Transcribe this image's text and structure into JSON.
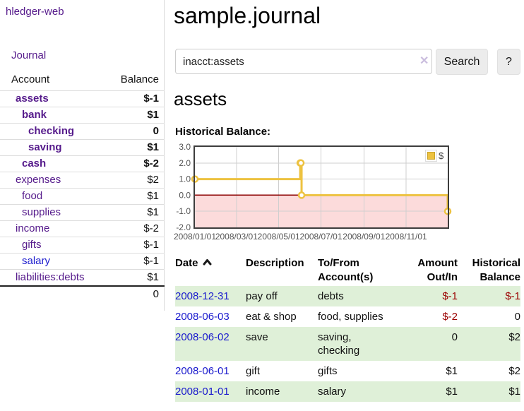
{
  "brand": "hledger-web",
  "nav": {
    "journal_label": "Journal"
  },
  "sidebar": {
    "header": {
      "account": "Account",
      "balance": "Balance"
    },
    "accounts": [
      {
        "name": "assets",
        "indent": 0,
        "balance": "$-1",
        "bold": true,
        "neg": "strong",
        "link_state": "visited"
      },
      {
        "name": "bank",
        "indent": 1,
        "balance": "$1",
        "bold": true,
        "neg": "none",
        "link_state": "visited"
      },
      {
        "name": "checking",
        "indent": 2,
        "balance": "0",
        "bold": true,
        "neg": "none",
        "link_state": "visited"
      },
      {
        "name": "saving",
        "indent": 2,
        "balance": "$1",
        "bold": true,
        "neg": "none",
        "link_state": "visited"
      },
      {
        "name": "cash",
        "indent": 1,
        "balance": "$-2",
        "bold": true,
        "neg": "strong",
        "link_state": "visited"
      },
      {
        "name": "expenses",
        "indent": 0,
        "balance": "$2",
        "bold": false,
        "neg": "none",
        "link_state": "visited"
      },
      {
        "name": "food",
        "indent": 1,
        "balance": "$1",
        "bold": false,
        "neg": "none",
        "link_state": "visited"
      },
      {
        "name": "supplies",
        "indent": 1,
        "balance": "$1",
        "bold": false,
        "neg": "none",
        "link_state": "visited"
      },
      {
        "name": "income",
        "indent": 0,
        "balance": "$-2",
        "bold": false,
        "neg": "soft",
        "link_state": "visited"
      },
      {
        "name": "gifts",
        "indent": 1,
        "balance": "$-1",
        "bold": false,
        "neg": "soft",
        "link_state": "visited"
      },
      {
        "name": "salary",
        "indent": 1,
        "balance": "$-1",
        "bold": false,
        "neg": "soft",
        "link_state": "unvisited"
      },
      {
        "name": "liabilities:debts",
        "indent": 0,
        "balance": "$1",
        "bold": false,
        "neg": "none",
        "link_state": "visited"
      }
    ],
    "total": "0"
  },
  "header": {
    "title": "sample.journal"
  },
  "search": {
    "value": "inacct:assets",
    "clear_icon": "✕",
    "button_label": "Search",
    "help_label": "?"
  },
  "account_page": {
    "heading": "assets",
    "chart_label": "Historical Balance:"
  },
  "chart_data": {
    "type": "line",
    "title": "Historical Balance:",
    "step": true,
    "xlim_days": [
      0,
      365
    ],
    "ylim": [
      -2,
      3
    ],
    "grid": true,
    "legend_position": "top-right",
    "series": [
      {
        "name": "$",
        "color": "#edc240",
        "points": [
          {
            "date": "2008/01/01",
            "day": 0,
            "value": 1
          },
          {
            "date": "2008/06/01",
            "day": 152,
            "value": 2
          },
          {
            "date": "2008/06/02",
            "day": 153,
            "value": 2
          },
          {
            "date": "2008/06/03",
            "day": 154,
            "value": 0
          },
          {
            "date": "2008/12/31",
            "day": 365,
            "value": -1
          }
        ]
      }
    ],
    "x_ticks": [
      {
        "day": 0,
        "label": "2008/01/01"
      },
      {
        "day": 60,
        "label": "2008/03/01"
      },
      {
        "day": 121,
        "label": "2008/05/01"
      },
      {
        "day": 182,
        "label": "2008/07/01"
      },
      {
        "day": 244,
        "label": "2008/09/01"
      },
      {
        "day": 305,
        "label": "2008/11/01"
      }
    ],
    "y_ticks": [
      {
        "value": 3,
        "label": "3.0"
      },
      {
        "value": 2,
        "label": "2.0"
      },
      {
        "value": 1,
        "label": "1.0"
      },
      {
        "value": 0,
        "label": "0.0"
      },
      {
        "value": -1,
        "label": "-1.0"
      },
      {
        "value": -2,
        "label": "-2.0"
      }
    ],
    "colors": {
      "negative_region_fill": "#fcdbdb",
      "zero_line": "#8b0000",
      "grid_line": "#cfcfcf",
      "plot_border": "#3d3d3d",
      "tick_text": "#545454"
    }
  },
  "register": {
    "columns": [
      {
        "line1": "Date",
        "line2": "",
        "sorted_asc": true
      },
      {
        "line1": "Description",
        "line2": ""
      },
      {
        "line1": "To/From",
        "line2": "Account(s)"
      },
      {
        "line1": "Amount",
        "line2": "Out/In"
      },
      {
        "line1": "Historical",
        "line2": "Balance"
      }
    ],
    "rows": [
      {
        "date": "2008-12-31",
        "description": "pay off",
        "accounts": "debts",
        "amount": "$-1",
        "amount_neg": true,
        "balance": "$-1",
        "balance_neg": true
      },
      {
        "date": "2008-06-03",
        "description": "eat & shop",
        "accounts": "food, supplies",
        "amount": "$-2",
        "amount_neg": true,
        "balance": "0",
        "balance_neg": false
      },
      {
        "date": "2008-06-02",
        "description": "save",
        "accounts": "saving,\nchecking",
        "amount": "0",
        "amount_neg": false,
        "balance": "$2",
        "balance_neg": false
      },
      {
        "date": "2008-06-01",
        "description": "gift",
        "accounts": "gifts",
        "amount": "$1",
        "amount_neg": false,
        "balance": "$2",
        "balance_neg": false
      },
      {
        "date": "2008-01-01",
        "description": "income",
        "accounts": "salary",
        "amount": "$1",
        "amount_neg": false,
        "balance": "$1",
        "balance_neg": false
      }
    ]
  }
}
